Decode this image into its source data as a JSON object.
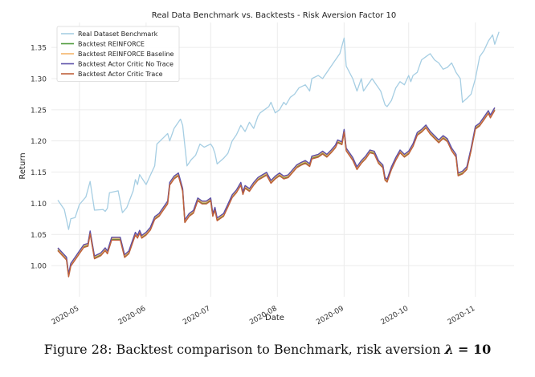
{
  "figure": {
    "caption_prefix": "Figure 28: Backtest comparison to Benchmark, risk aversion",
    "caption_symbol": "λ",
    "caption_eq": "= 10"
  },
  "chart_data": {
    "type": "line",
    "title": "Real Data Benchmark vs. Backtests - Risk Aversion Factor 10",
    "xlabel": "Date",
    "ylabel": "Return",
    "xlim": [
      "2020-04-18",
      "2020-11-19"
    ],
    "ylim": [
      0.95,
      1.39
    ],
    "yticks": [
      1.0,
      1.05,
      1.1,
      1.15,
      1.2,
      1.25,
      1.3,
      1.35
    ],
    "ytick_labels": [
      "1.00",
      "1.05",
      "1.10",
      "1.15",
      "1.20",
      "1.25",
      "1.30",
      "1.35"
    ],
    "xticks": [
      "2020-05-01",
      "2020-06-01",
      "2020-07-01",
      "2020-08-01",
      "2020-09-01",
      "2020-10-01",
      "2020-11-01"
    ],
    "xtick_labels": [
      "2020-05",
      "2020-06",
      "2020-07",
      "2020-08",
      "2020-09",
      "2020-10",
      "2020-11"
    ],
    "grid": true,
    "legend_position": "top-left",
    "series": [
      {
        "name": "Real Dataset Benchmark",
        "color": "#a6cee3",
        "points": [
          [
            "2020-04-21",
            1.105
          ],
          [
            "2020-04-24",
            1.09
          ],
          [
            "2020-04-26",
            1.058
          ],
          [
            "2020-04-27",
            1.075
          ],
          [
            "2020-04-29",
            1.077
          ],
          [
            "2020-05-01",
            1.098
          ],
          [
            "2020-05-04",
            1.11
          ],
          [
            "2020-05-06",
            1.135
          ],
          [
            "2020-05-08",
            1.089
          ],
          [
            "2020-05-12",
            1.09
          ],
          [
            "2020-05-13",
            1.087
          ],
          [
            "2020-05-14",
            1.092
          ],
          [
            "2020-05-15",
            1.117
          ],
          [
            "2020-05-19",
            1.12
          ],
          [
            "2020-05-21",
            1.085
          ],
          [
            "2020-05-23",
            1.093
          ],
          [
            "2020-05-26",
            1.12
          ],
          [
            "2020-05-27",
            1.138
          ],
          [
            "2020-05-28",
            1.13
          ],
          [
            "2020-05-29",
            1.146
          ],
          [
            "2020-06-01",
            1.13
          ],
          [
            "2020-06-03",
            1.145
          ],
          [
            "2020-06-05",
            1.16
          ],
          [
            "2020-06-06",
            1.195
          ],
          [
            "2020-06-09",
            1.205
          ],
          [
            "2020-06-11",
            1.212
          ],
          [
            "2020-06-12",
            1.2
          ],
          [
            "2020-06-14",
            1.22
          ],
          [
            "2020-06-17",
            1.235
          ],
          [
            "2020-06-18",
            1.225
          ],
          [
            "2020-06-20",
            1.16
          ],
          [
            "2020-06-22",
            1.17
          ],
          [
            "2020-06-24",
            1.177
          ],
          [
            "2020-06-26",
            1.195
          ],
          [
            "2020-06-28",
            1.19
          ],
          [
            "2020-07-01",
            1.195
          ],
          [
            "2020-07-02",
            1.19
          ],
          [
            "2020-07-03",
            1.18
          ],
          [
            "2020-07-04",
            1.163
          ],
          [
            "2020-07-07",
            1.172
          ],
          [
            "2020-07-09",
            1.18
          ],
          [
            "2020-07-11",
            1.2
          ],
          [
            "2020-07-13",
            1.21
          ],
          [
            "2020-07-15",
            1.225
          ],
          [
            "2020-07-17",
            1.215
          ],
          [
            "2020-07-19",
            1.23
          ],
          [
            "2020-07-21",
            1.22
          ],
          [
            "2020-07-23",
            1.24
          ],
          [
            "2020-07-24",
            1.245
          ],
          [
            "2020-07-26",
            1.25
          ],
          [
            "2020-07-28",
            1.255
          ],
          [
            "2020-07-29",
            1.262
          ],
          [
            "2020-07-31",
            1.245
          ],
          [
            "2020-08-02",
            1.25
          ],
          [
            "2020-08-04",
            1.262
          ],
          [
            "2020-08-05",
            1.258
          ],
          [
            "2020-08-07",
            1.27
          ],
          [
            "2020-08-09",
            1.275
          ],
          [
            "2020-08-11",
            1.285
          ],
          [
            "2020-08-14",
            1.29
          ],
          [
            "2020-08-16",
            1.28
          ],
          [
            "2020-08-17",
            1.3
          ],
          [
            "2020-08-20",
            1.305
          ],
          [
            "2020-08-22",
            1.3
          ],
          [
            "2020-08-24",
            1.31
          ],
          [
            "2020-08-26",
            1.32
          ],
          [
            "2020-08-28",
            1.33
          ],
          [
            "2020-08-30",
            1.34
          ],
          [
            "2020-09-01",
            1.365
          ],
          [
            "2020-09-02",
            1.32
          ],
          [
            "2020-09-05",
            1.3
          ],
          [
            "2020-09-07",
            1.28
          ],
          [
            "2020-09-09",
            1.3
          ],
          [
            "2020-09-10",
            1.28
          ],
          [
            "2020-09-12",
            1.29
          ],
          [
            "2020-09-14",
            1.3
          ],
          [
            "2020-09-16",
            1.29
          ],
          [
            "2020-09-18",
            1.28
          ],
          [
            "2020-09-20",
            1.258
          ],
          [
            "2020-09-21",
            1.255
          ],
          [
            "2020-09-23",
            1.265
          ],
          [
            "2020-09-25",
            1.285
          ],
          [
            "2020-09-27",
            1.295
          ],
          [
            "2020-09-29",
            1.29
          ],
          [
            "2020-10-01",
            1.305
          ],
          [
            "2020-10-02",
            1.295
          ],
          [
            "2020-10-03",
            1.305
          ],
          [
            "2020-10-05",
            1.31
          ],
          [
            "2020-10-07",
            1.33
          ],
          [
            "2020-10-09",
            1.335
          ],
          [
            "2020-10-11",
            1.34
          ],
          [
            "2020-10-13",
            1.33
          ],
          [
            "2020-10-15",
            1.325
          ],
          [
            "2020-10-17",
            1.315
          ],
          [
            "2020-10-19",
            1.318
          ],
          [
            "2020-10-21",
            1.325
          ],
          [
            "2020-10-23",
            1.31
          ],
          [
            "2020-10-25",
            1.3
          ],
          [
            "2020-10-26",
            1.262
          ],
          [
            "2020-10-28",
            1.268
          ],
          [
            "2020-10-30",
            1.275
          ],
          [
            "2020-11-01",
            1.3
          ],
          [
            "2020-11-03",
            1.335
          ],
          [
            "2020-11-05",
            1.345
          ],
          [
            "2020-11-07",
            1.36
          ],
          [
            "2020-11-09",
            1.37
          ],
          [
            "2020-11-10",
            1.355
          ],
          [
            "2020-11-12",
            1.375
          ]
        ]
      },
      {
        "name": "Backtest REINFORCE",
        "color": "#4f9a3c",
        "points": [
          [
            "2020-04-21",
            1.025
          ],
          [
            "2020-04-25",
            1.01
          ],
          [
            "2020-04-26",
            0.983
          ],
          [
            "2020-04-27",
            1.0
          ],
          [
            "2020-04-29",
            1.01
          ],
          [
            "2020-05-01",
            1.02
          ],
          [
            "2020-05-03",
            1.03
          ],
          [
            "2020-05-05",
            1.032
          ],
          [
            "2020-05-06",
            1.052
          ],
          [
            "2020-05-08",
            1.012
          ],
          [
            "2020-05-11",
            1.017
          ],
          [
            "2020-05-13",
            1.025
          ],
          [
            "2020-05-14",
            1.02
          ],
          [
            "2020-05-16",
            1.042
          ],
          [
            "2020-05-20",
            1.042
          ],
          [
            "2020-05-22",
            1.014
          ],
          [
            "2020-05-24",
            1.02
          ],
          [
            "2020-05-26",
            1.04
          ],
          [
            "2020-05-27",
            1.05
          ],
          [
            "2020-05-28",
            1.045
          ],
          [
            "2020-05-29",
            1.053
          ],
          [
            "2020-05-30",
            1.045
          ],
          [
            "2020-06-01",
            1.05
          ],
          [
            "2020-06-03",
            1.058
          ],
          [
            "2020-06-05",
            1.075
          ],
          [
            "2020-06-07",
            1.08
          ],
          [
            "2020-06-09",
            1.09
          ],
          [
            "2020-06-11",
            1.1
          ],
          [
            "2020-06-12",
            1.13
          ],
          [
            "2020-06-14",
            1.14
          ],
          [
            "2020-06-16",
            1.145
          ],
          [
            "2020-06-18",
            1.12
          ],
          [
            "2020-06-19",
            1.07
          ],
          [
            "2020-06-21",
            1.08
          ],
          [
            "2020-06-23",
            1.085
          ],
          [
            "2020-06-25",
            1.105
          ],
          [
            "2020-06-27",
            1.1
          ],
          [
            "2020-06-29",
            1.1
          ],
          [
            "2020-07-01",
            1.105
          ],
          [
            "2020-07-02",
            1.08
          ],
          [
            "2020-07-03",
            1.09
          ],
          [
            "2020-07-04",
            1.073
          ],
          [
            "2020-07-07",
            1.08
          ],
          [
            "2020-07-09",
            1.095
          ],
          [
            "2020-07-11",
            1.11
          ],
          [
            "2020-07-13",
            1.118
          ],
          [
            "2020-07-15",
            1.13
          ],
          [
            "2020-07-16",
            1.115
          ],
          [
            "2020-07-17",
            1.125
          ],
          [
            "2020-07-19",
            1.12
          ],
          [
            "2020-07-21",
            1.13
          ],
          [
            "2020-07-23",
            1.138
          ],
          [
            "2020-07-25",
            1.142
          ],
          [
            "2020-07-27",
            1.146
          ],
          [
            "2020-07-29",
            1.133
          ],
          [
            "2020-07-31",
            1.14
          ],
          [
            "2020-08-02",
            1.145
          ],
          [
            "2020-08-04",
            1.14
          ],
          [
            "2020-08-06",
            1.142
          ],
          [
            "2020-08-08",
            1.15
          ],
          [
            "2020-08-10",
            1.158
          ],
          [
            "2020-08-12",
            1.162
          ],
          [
            "2020-08-14",
            1.165
          ],
          [
            "2020-08-16",
            1.16
          ],
          [
            "2020-08-17",
            1.172
          ],
          [
            "2020-08-20",
            1.175
          ],
          [
            "2020-08-22",
            1.18
          ],
          [
            "2020-08-24",
            1.175
          ],
          [
            "2020-08-26",
            1.182
          ],
          [
            "2020-08-28",
            1.19
          ],
          [
            "2020-08-29",
            1.198
          ],
          [
            "2020-08-31",
            1.195
          ],
          [
            "2020-09-01",
            1.215
          ],
          [
            "2020-09-02",
            1.185
          ],
          [
            "2020-09-05",
            1.17
          ],
          [
            "2020-09-07",
            1.155
          ],
          [
            "2020-09-09",
            1.165
          ],
          [
            "2020-09-11",
            1.172
          ],
          [
            "2020-09-13",
            1.182
          ],
          [
            "2020-09-15",
            1.18
          ],
          [
            "2020-09-17",
            1.165
          ],
          [
            "2020-09-19",
            1.158
          ],
          [
            "2020-09-20",
            1.138
          ],
          [
            "2020-09-21",
            1.135
          ],
          [
            "2020-09-23",
            1.155
          ],
          [
            "2020-09-25",
            1.17
          ],
          [
            "2020-09-27",
            1.182
          ],
          [
            "2020-09-29",
            1.175
          ],
          [
            "2020-10-01",
            1.18
          ],
          [
            "2020-10-03",
            1.192
          ],
          [
            "2020-10-05",
            1.21
          ],
          [
            "2020-10-07",
            1.215
          ],
          [
            "2020-10-09",
            1.222
          ],
          [
            "2020-10-11",
            1.212
          ],
          [
            "2020-10-13",
            1.205
          ],
          [
            "2020-10-15",
            1.198
          ],
          [
            "2020-10-17",
            1.205
          ],
          [
            "2020-10-19",
            1.2
          ],
          [
            "2020-10-21",
            1.185
          ],
          [
            "2020-10-23",
            1.175
          ],
          [
            "2020-10-24",
            1.145
          ],
          [
            "2020-10-26",
            1.148
          ],
          [
            "2020-10-28",
            1.155
          ],
          [
            "2020-10-30",
            1.185
          ],
          [
            "2020-11-01",
            1.22
          ],
          [
            "2020-11-03",
            1.225
          ],
          [
            "2020-11-05",
            1.235
          ],
          [
            "2020-11-07",
            1.245
          ],
          [
            "2020-11-08",
            1.238
          ],
          [
            "2020-11-10",
            1.25
          ]
        ]
      },
      {
        "name": "Backtest REINFORCE Baseline",
        "color": "#f5b56b",
        "offset_of": 1,
        "delta": 0.002
      },
      {
        "name": "Backtest Actor Critic No Trace",
        "color": "#5b4fa8",
        "offset_of": 1,
        "delta": 0.0035
      },
      {
        "name": "Backtest Actor Critic Trace",
        "color": "#c0603b",
        "offset_of": 1,
        "delta": -0.001
      }
    ]
  }
}
